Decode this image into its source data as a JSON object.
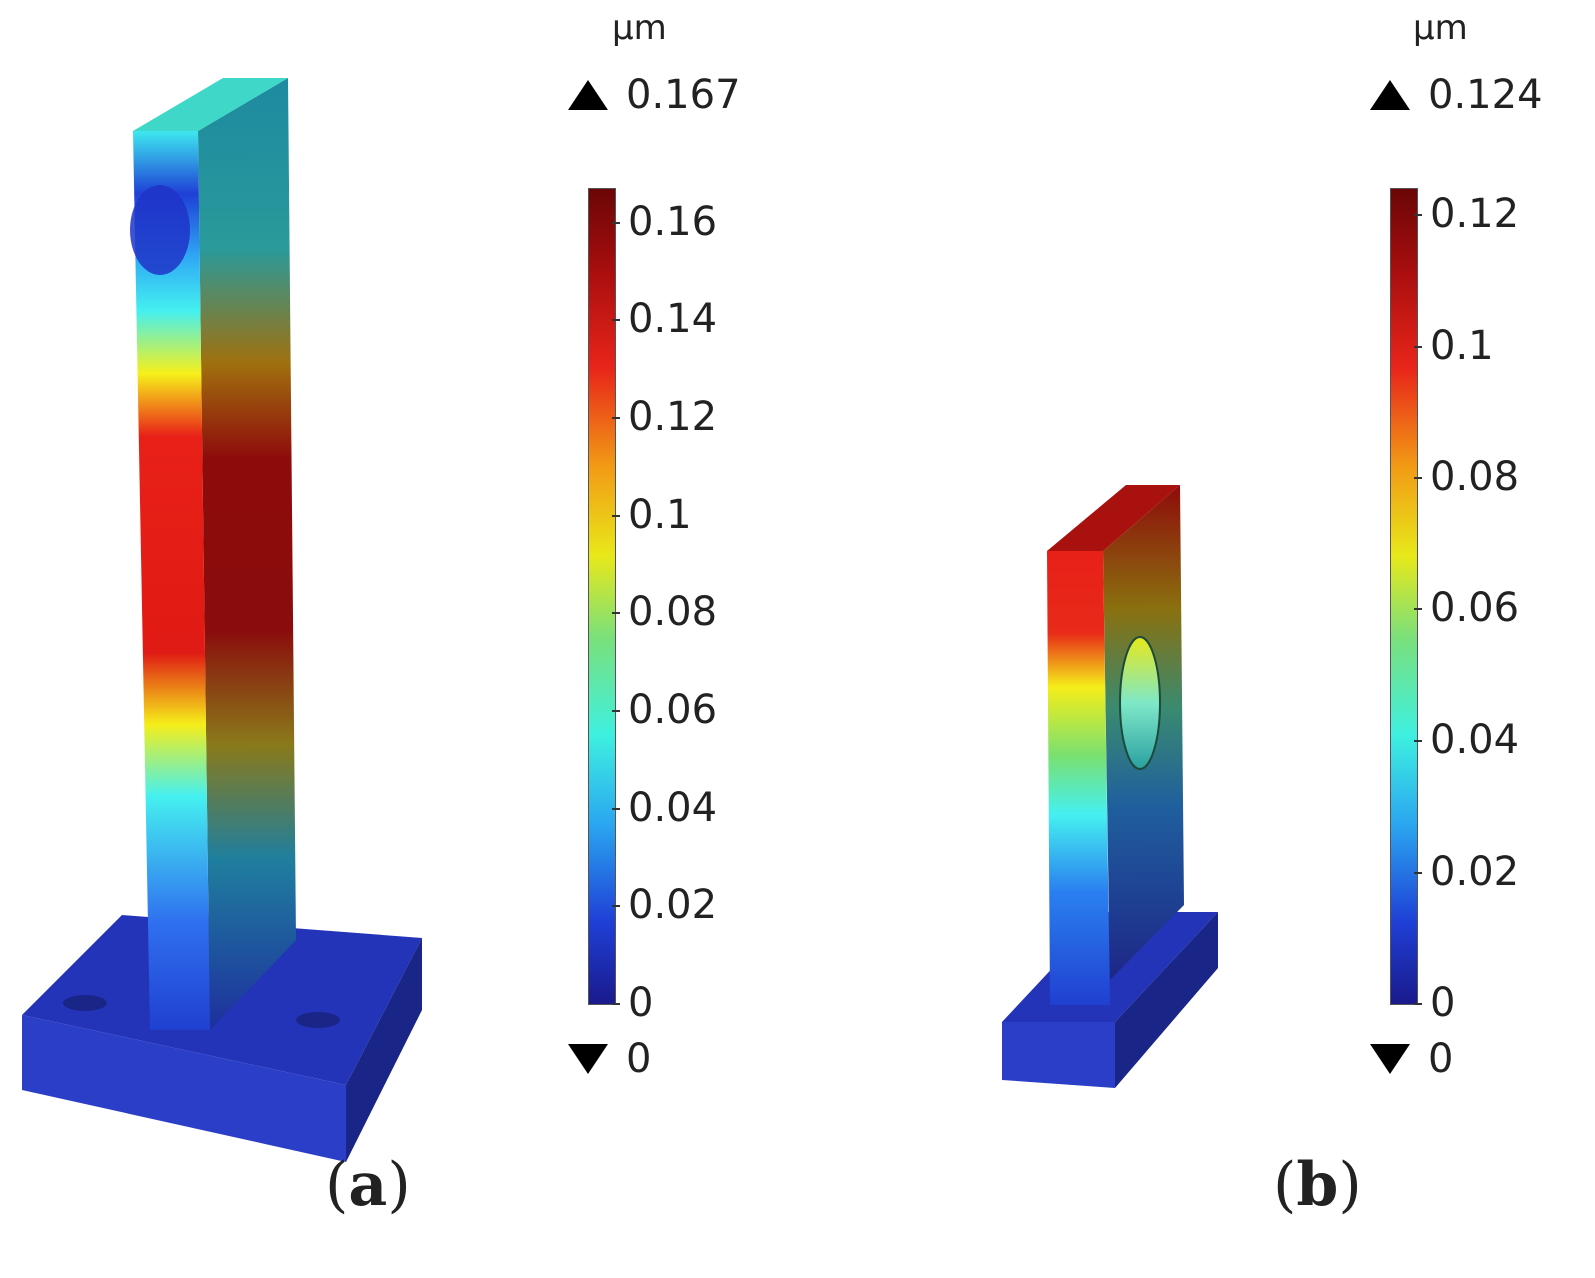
{
  "panel_a": {
    "unit": "µm",
    "max_label": "0.167",
    "min_label": "0",
    "ticks": [
      "0.16",
      "0.14",
      "0.12",
      "0.1",
      "0.08",
      "0.06",
      "0.04",
      "0.02",
      "0"
    ],
    "caption_open": "(",
    "caption_letter": "a",
    "caption_close": ")"
  },
  "panel_b": {
    "unit": "µm",
    "max_label": "0.124",
    "min_label": "0",
    "ticks": [
      "0.12",
      "0.1",
      "0.08",
      "0.06",
      "0.04",
      "0.02",
      "0"
    ],
    "caption_open": "(",
    "caption_letter": "b",
    "caption_close": ")"
  },
  "colors": {
    "dark_blue": "#1e2fae",
    "cyan": "#3ef0e0",
    "yellow": "#f5ee1a",
    "red": "#e52016",
    "dark_red": "#8e0b0b"
  }
}
